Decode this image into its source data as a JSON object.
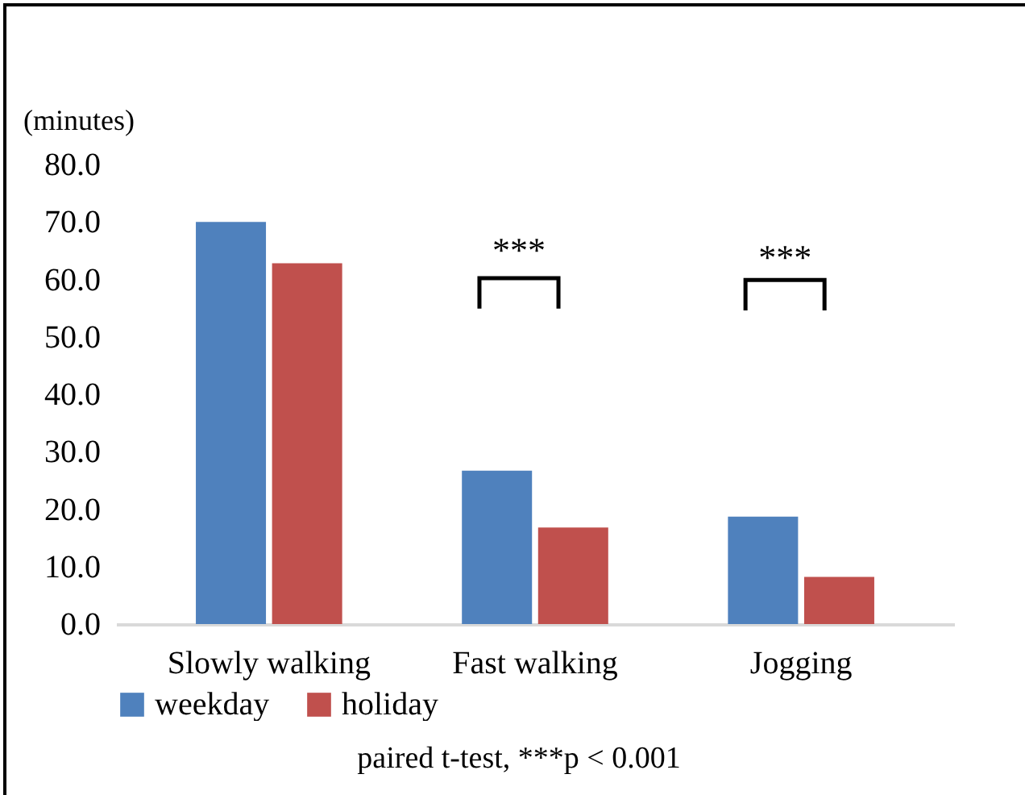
{
  "chart_data": {
    "type": "bar",
    "ylabel": "(minutes)",
    "categories": [
      "Slowly walking",
      "Fast walking",
      "Jogging"
    ],
    "series": [
      {
        "name": "weekday",
        "color": "#4f81bd",
        "values": [
          70.0,
          26.7,
          18.7
        ]
      },
      {
        "name": "holiday",
        "color": "#c0504d",
        "values": [
          62.8,
          16.8,
          8.2
        ]
      }
    ],
    "ylim": [
      0,
      80
    ],
    "yticks": [
      {
        "value": 0,
        "label": "0.0"
      },
      {
        "value": 10,
        "label": "10.0"
      },
      {
        "value": 20,
        "label": "20.0"
      },
      {
        "value": 30,
        "label": "30.0"
      },
      {
        "value": 40,
        "label": "40.0"
      },
      {
        "value": 50,
        "label": "50.0"
      },
      {
        "value": 60,
        "label": "60.0"
      },
      {
        "value": 70,
        "label": "70.0"
      },
      {
        "value": 80,
        "label": "80.0"
      }
    ],
    "legend": "bottom",
    "grid": false,
    "annotations": [
      "***",
      "***",
      "paired t-test, ***p < 0.001"
    ]
  }
}
